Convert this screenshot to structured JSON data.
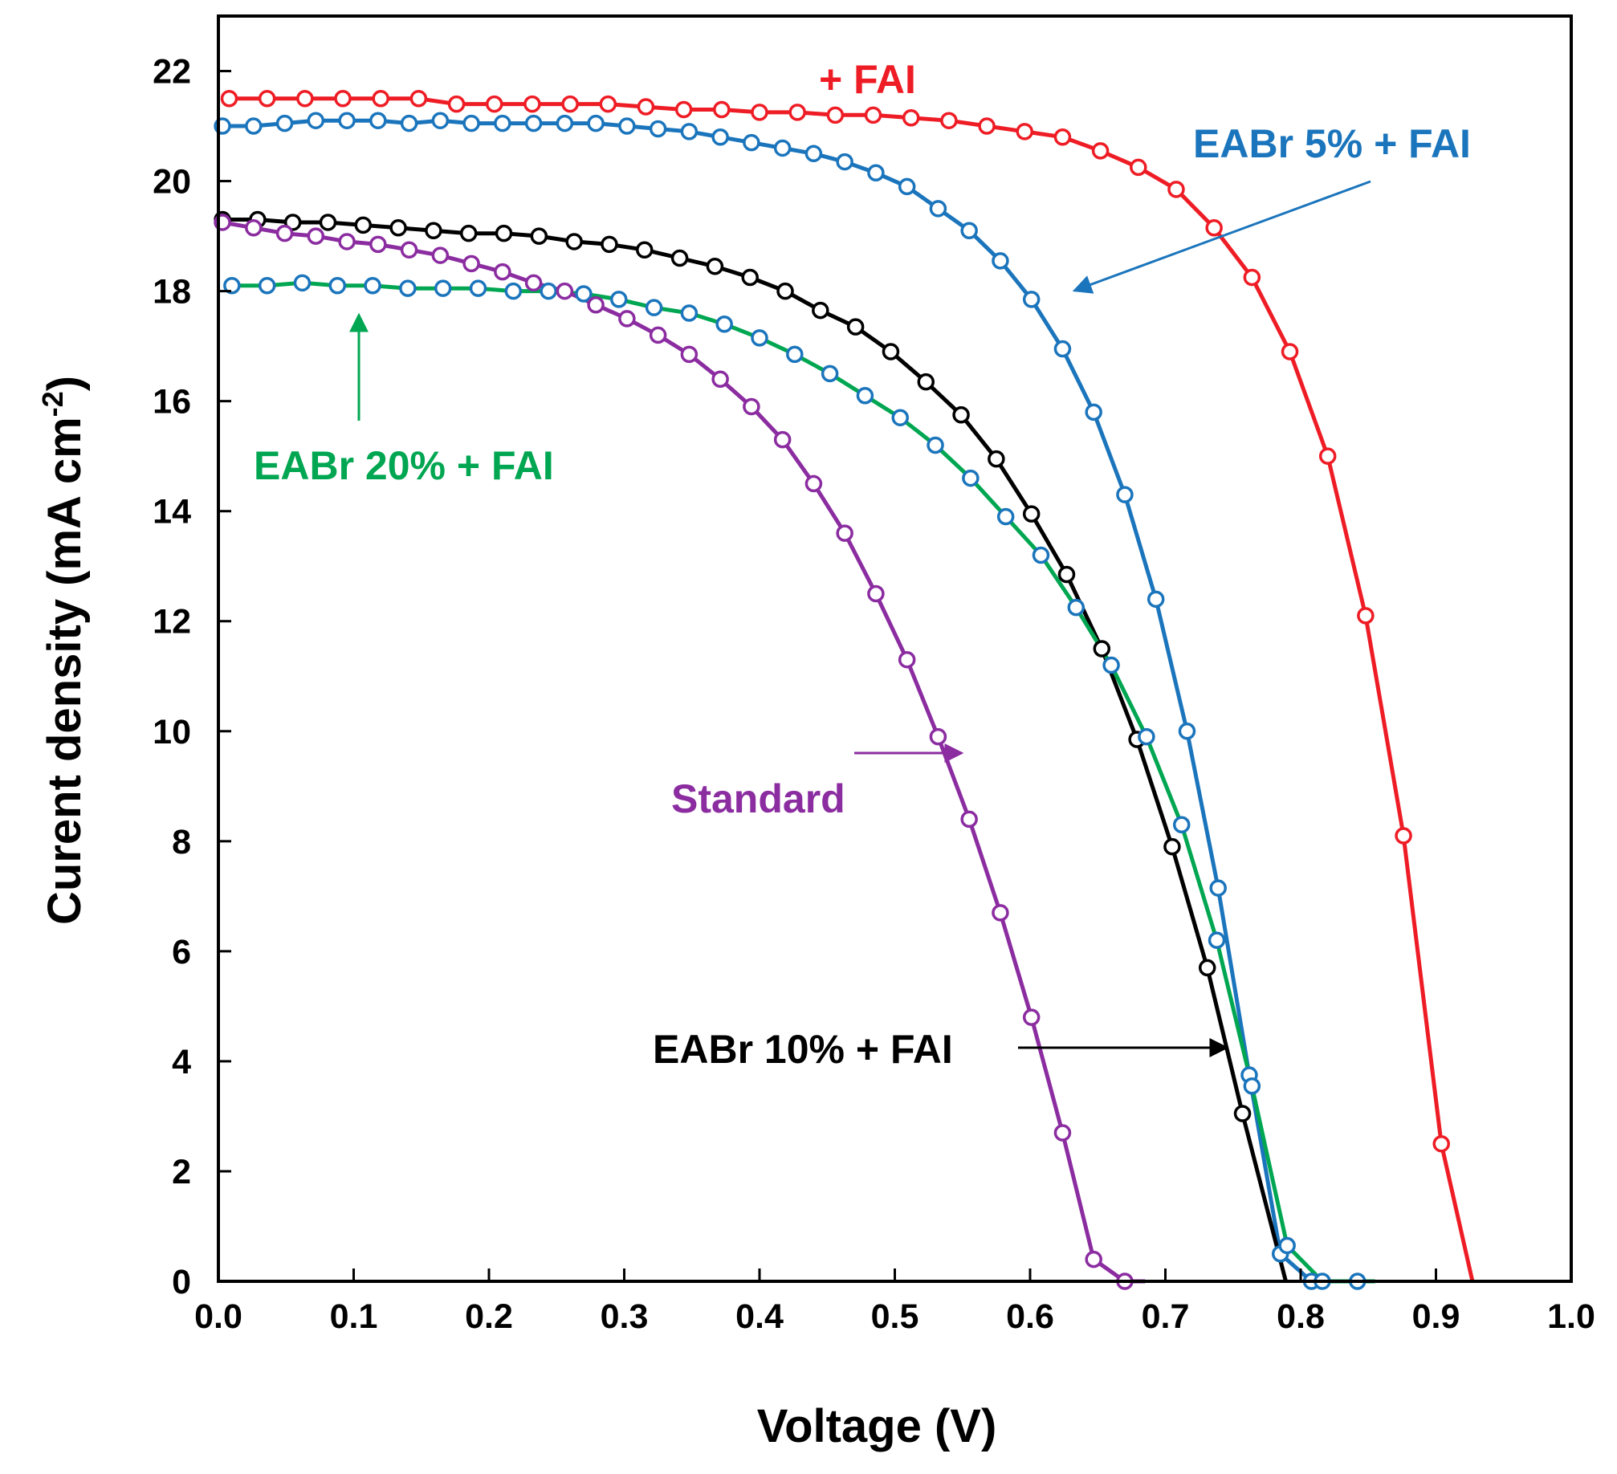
{
  "chart_data": {
    "type": "line",
    "xlabel": "Voltage (V)",
    "ylabel": {
      "main": "Curent density (mA cm",
      "sup": "-2",
      "end": ")"
    },
    "xlim": [
      0.0,
      1.0
    ],
    "ylim": [
      0,
      23
    ],
    "xticks": [
      "0.0",
      "0.1",
      "0.2",
      "0.3",
      "0.4",
      "0.5",
      "0.6",
      "0.7",
      "0.8",
      "0.9",
      "1.0"
    ],
    "yticks": [
      "0",
      "2",
      "4",
      "6",
      "8",
      "10",
      "12",
      "14",
      "16",
      "18",
      "20",
      "22"
    ],
    "series": [
      {
        "name": "+ FAI",
        "color": "#ee1c25",
        "x": [
          0.008,
          0.036,
          0.064,
          0.092,
          0.12,
          0.148,
          0.176,
          0.204,
          0.232,
          0.26,
          0.288,
          0.316,
          0.344,
          0.372,
          0.4,
          0.428,
          0.456,
          0.484,
          0.512,
          0.54,
          0.568,
          0.596,
          0.624,
          0.652,
          0.68,
          0.708,
          0.736,
          0.764,
          0.792,
          0.82,
          0.848,
          0.876,
          0.904
        ],
        "y": [
          21.5,
          21.5,
          21.5,
          21.5,
          21.5,
          21.5,
          21.4,
          21.4,
          21.4,
          21.4,
          21.4,
          21.35,
          21.3,
          21.3,
          21.25,
          21.25,
          21.2,
          21.2,
          21.15,
          21.1,
          21.0,
          20.9,
          20.8,
          20.55,
          20.25,
          19.85,
          19.15,
          18.25,
          16.9,
          15.0,
          12.1,
          8.1,
          2.5
        ],
        "x_end": 0.927
      },
      {
        "name": "EABr 5% + FAI",
        "color": "#1b75bc",
        "x": [
          0.003,
          0.026,
          0.049,
          0.072,
          0.095,
          0.118,
          0.141,
          0.164,
          0.187,
          0.21,
          0.233,
          0.256,
          0.279,
          0.302,
          0.325,
          0.348,
          0.371,
          0.394,
          0.417,
          0.44,
          0.463,
          0.486,
          0.509,
          0.532,
          0.555,
          0.578,
          0.601,
          0.624,
          0.647,
          0.67,
          0.693,
          0.716,
          0.739,
          0.762,
          0.785,
          0.808
        ],
        "y": [
          21.0,
          21.0,
          21.05,
          21.1,
          21.1,
          21.1,
          21.05,
          21.1,
          21.05,
          21.05,
          21.05,
          21.05,
          21.05,
          21.0,
          20.95,
          20.9,
          20.8,
          20.7,
          20.6,
          20.5,
          20.35,
          20.15,
          19.9,
          19.5,
          19.1,
          18.55,
          17.85,
          16.95,
          15.8,
          14.3,
          12.4,
          10.0,
          7.15,
          3.75,
          0.5,
          0.0
        ],
        "x_end": 0.835
      },
      {
        "name": "EABr 10% + FAI",
        "color": "#000000",
        "x": [
          0.003,
          0.029,
          0.055,
          0.081,
          0.107,
          0.133,
          0.159,
          0.185,
          0.211,
          0.237,
          0.263,
          0.289,
          0.315,
          0.341,
          0.367,
          0.393,
          0.419,
          0.445,
          0.471,
          0.497,
          0.523,
          0.549,
          0.575,
          0.601,
          0.627,
          0.653,
          0.679,
          0.705,
          0.731,
          0.757
        ],
        "y": [
          19.3,
          19.3,
          19.25,
          19.25,
          19.2,
          19.15,
          19.1,
          19.05,
          19.05,
          19.0,
          18.9,
          18.85,
          18.75,
          18.6,
          18.45,
          18.25,
          18.0,
          17.65,
          17.35,
          16.9,
          16.35,
          15.75,
          14.95,
          13.95,
          12.85,
          11.5,
          9.85,
          7.9,
          5.7,
          3.05
        ],
        "x_end": 0.789
      },
      {
        "name": "EABr 20% + FAI",
        "color": "#00a651",
        "marker": "#1b75bc",
        "x": [
          0.01,
          0.036,
          0.062,
          0.088,
          0.114,
          0.14,
          0.166,
          0.192,
          0.218,
          0.244,
          0.27,
          0.296,
          0.322,
          0.348,
          0.374,
          0.4,
          0.426,
          0.452,
          0.478,
          0.504,
          0.53,
          0.556,
          0.582,
          0.608,
          0.634,
          0.66,
          0.686,
          0.712,
          0.738,
          0.764,
          0.79,
          0.816,
          0.842
        ],
        "y": [
          18.1,
          18.1,
          18.15,
          18.1,
          18.1,
          18.05,
          18.05,
          18.05,
          18.0,
          18.0,
          17.95,
          17.85,
          17.7,
          17.6,
          17.4,
          17.15,
          16.85,
          16.5,
          16.1,
          15.7,
          15.2,
          14.6,
          13.9,
          13.2,
          12.25,
          11.2,
          9.9,
          8.3,
          6.2,
          3.55,
          0.65,
          0.0,
          0.0
        ],
        "x_end": 0.855
      },
      {
        "name": "Standard",
        "color": "#8b2ca0",
        "x": [
          0.003,
          0.026,
          0.049,
          0.072,
          0.095,
          0.118,
          0.141,
          0.164,
          0.187,
          0.21,
          0.233,
          0.256,
          0.279,
          0.302,
          0.325,
          0.348,
          0.371,
          0.394,
          0.417,
          0.44,
          0.463,
          0.486,
          0.509,
          0.532,
          0.555,
          0.578,
          0.601,
          0.624,
          0.647,
          0.67
        ],
        "y": [
          19.25,
          19.15,
          19.05,
          19.0,
          18.9,
          18.85,
          18.75,
          18.65,
          18.5,
          18.35,
          18.15,
          18.0,
          17.75,
          17.5,
          17.2,
          16.85,
          16.4,
          15.9,
          15.3,
          14.5,
          13.6,
          12.5,
          11.3,
          9.9,
          8.4,
          6.7,
          4.8,
          2.7,
          0.4,
          0.0
        ],
        "x_end": 0.685
      }
    ],
    "annotations": [
      {
        "text": "+ FAI",
        "color": "#ee1c25"
      },
      {
        "text": "EABr 5% + FAI",
        "color": "#1b75bc"
      },
      {
        "text": "EABr 20% + FAI",
        "color": "#00a651"
      },
      {
        "text": "Standard",
        "color": "#8b2ca0"
      },
      {
        "text": "EABr 10% + FAI",
        "color": "#000000"
      }
    ]
  }
}
